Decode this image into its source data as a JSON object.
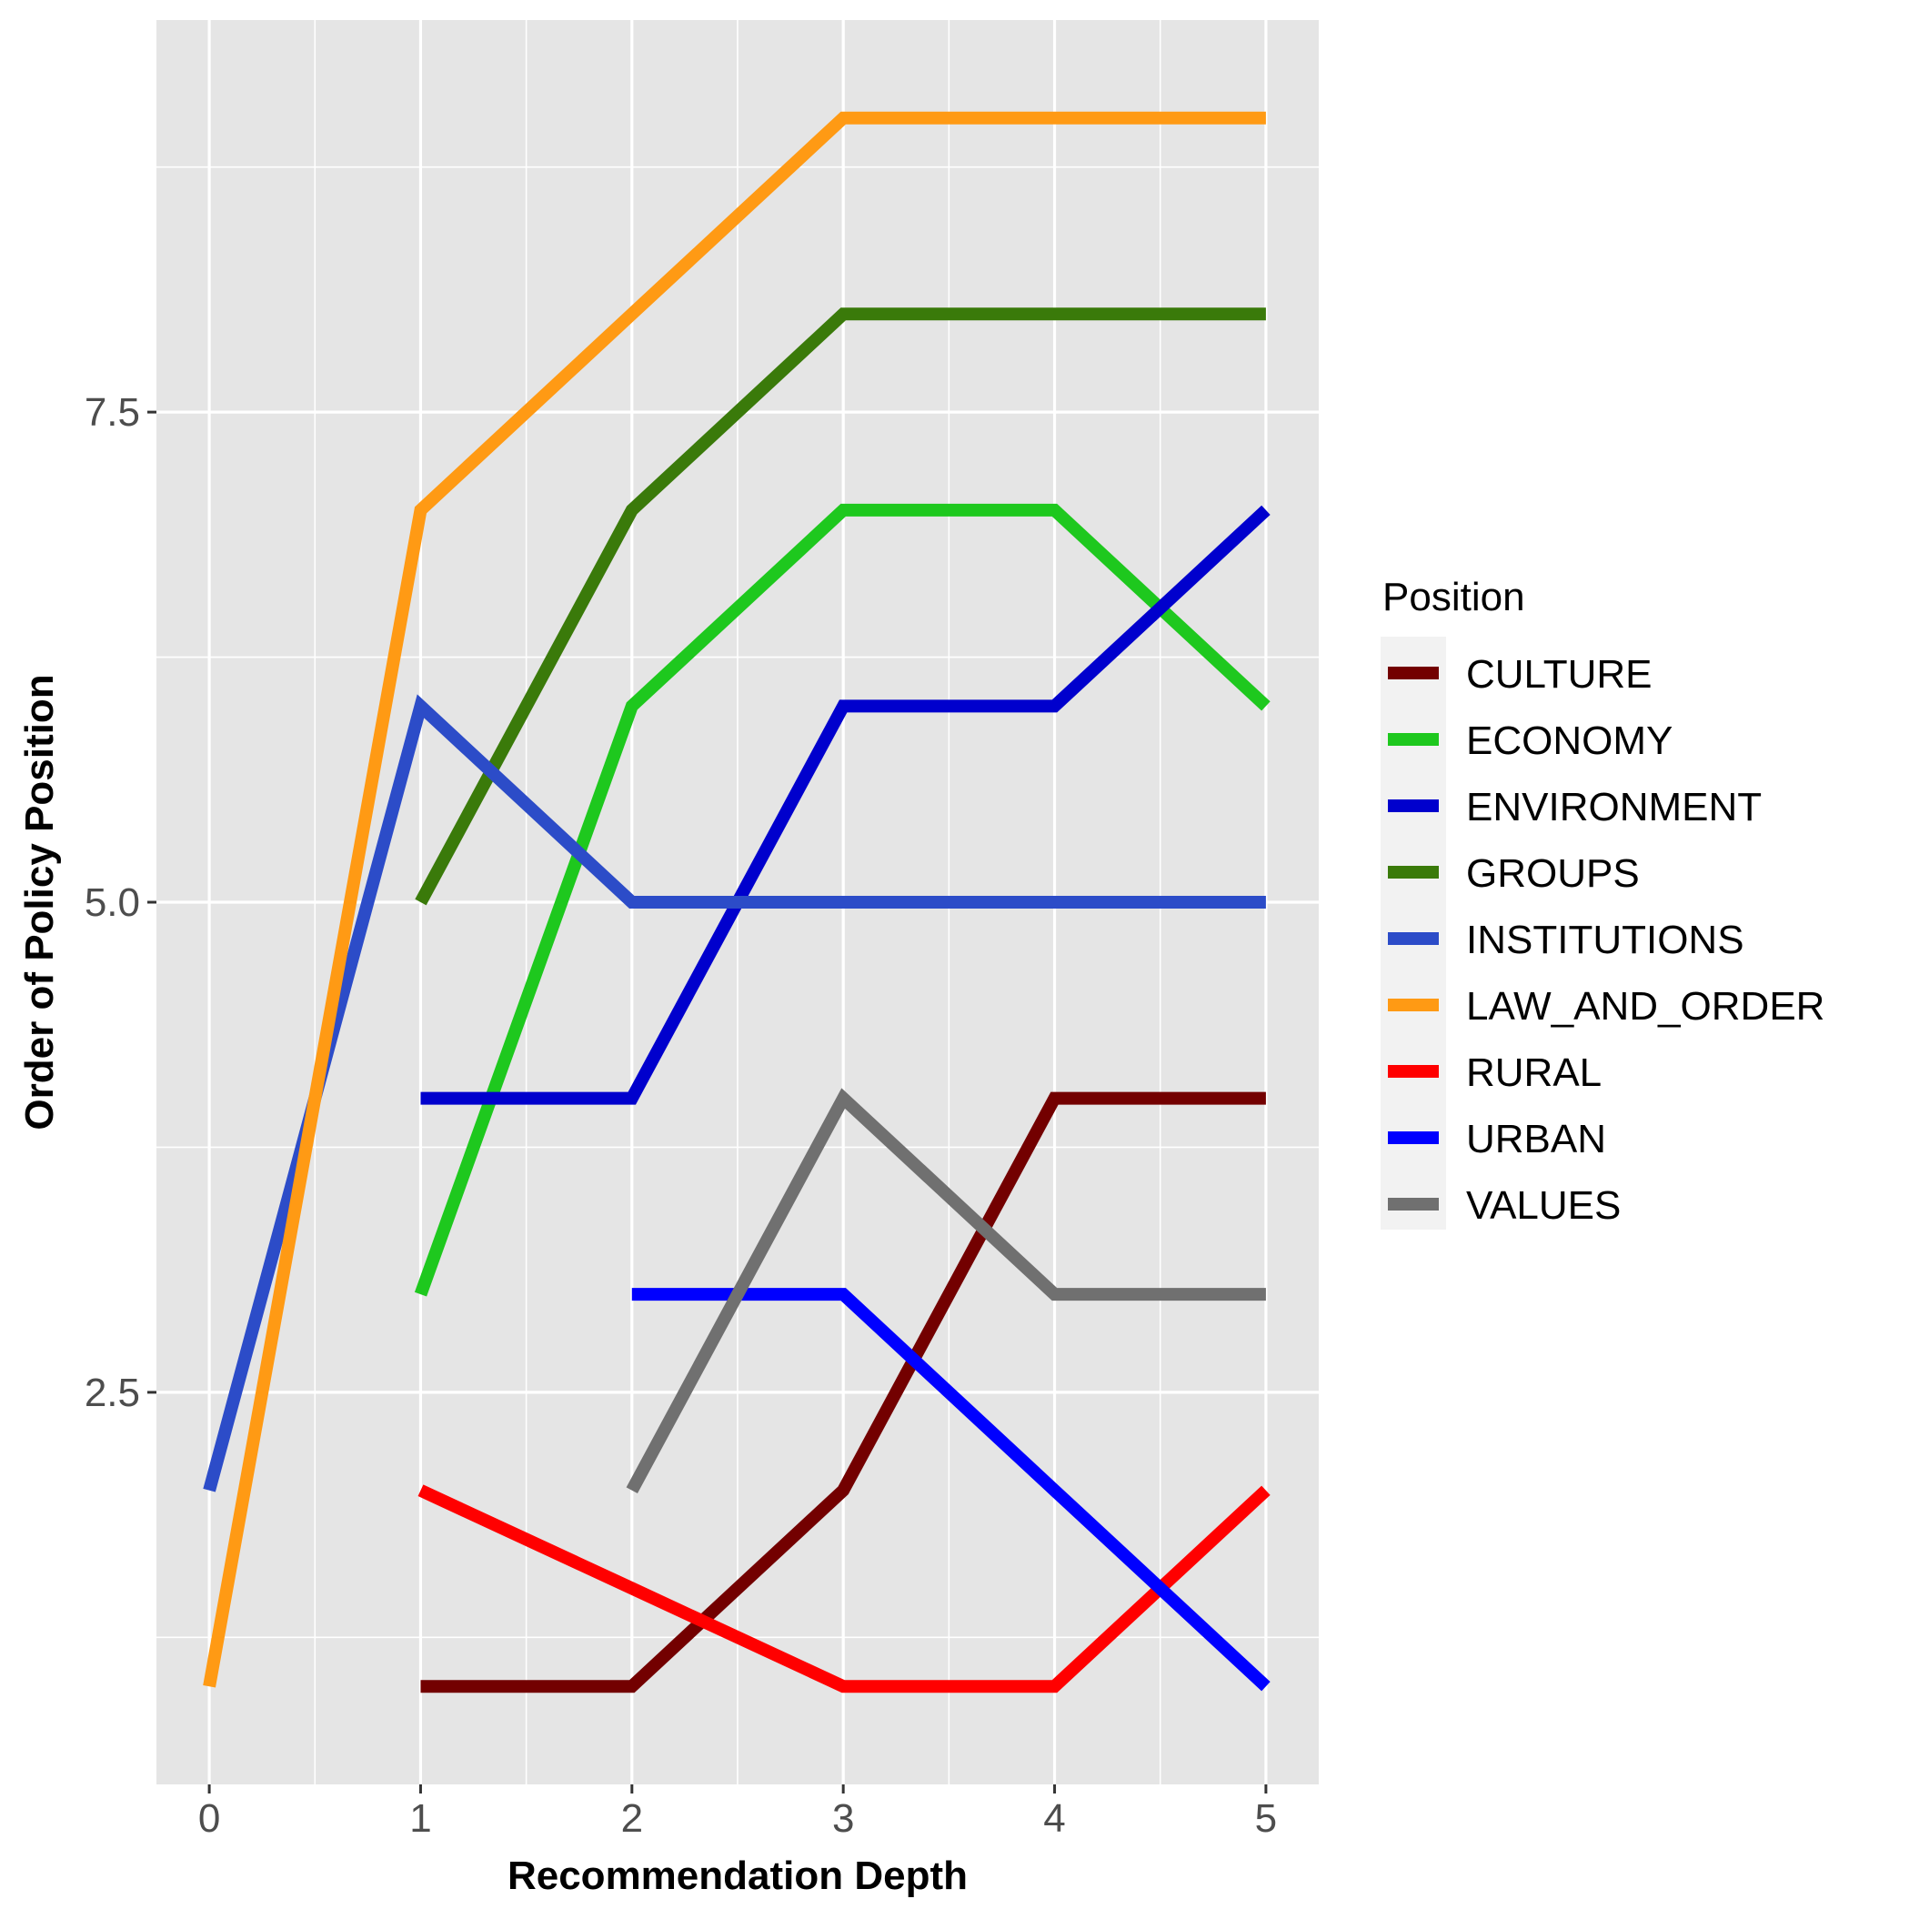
{
  "chart_data": {
    "type": "line",
    "title": "",
    "xlabel": "Recommendation Depth",
    "ylabel": "Order of Policy Position",
    "xlim": [
      -0.25,
      5.25
    ],
    "ylim": [
      0.5,
      9.5
    ],
    "x_ticks": [
      0,
      1,
      2,
      3,
      4,
      5
    ],
    "x_tick_labels": [
      "0",
      "1",
      "2",
      "3",
      "4",
      "5"
    ],
    "y_ticks": [
      2.5,
      5.0,
      7.5
    ],
    "y_tick_labels": [
      "2.5",
      "5.0",
      "7.5"
    ],
    "grid": true,
    "background": "#e5e5e5",
    "legend": {
      "title": "Position",
      "position": "right"
    },
    "series": [
      {
        "name": "CULTURE",
        "color": "#730000",
        "x": [
          1,
          2,
          3,
          4,
          5
        ],
        "y": [
          1,
          1,
          2,
          4,
          4
        ]
      },
      {
        "name": "ECONOMY",
        "color": "#1ec81e",
        "x": [
          1,
          2,
          3,
          4,
          5
        ],
        "y": [
          3,
          6,
          7,
          7,
          6
        ]
      },
      {
        "name": "ENVIRONMENT",
        "color": "#0000cd",
        "x": [
          1,
          2,
          3,
          4,
          5
        ],
        "y": [
          4,
          4,
          6,
          6,
          7
        ]
      },
      {
        "name": "GROUPS",
        "color": "#3a7a0a",
        "x": [
          1,
          2,
          3,
          4,
          5
        ],
        "y": [
          5,
          7,
          8,
          8,
          8
        ]
      },
      {
        "name": "INSTITUTIONS",
        "color": "#2c4cc8",
        "x": [
          0,
          1,
          2,
          3,
          4,
          5
        ],
        "y": [
          2,
          6,
          5,
          5,
          5,
          5
        ]
      },
      {
        "name": "LAW_AND_ORDER",
        "color": "#ff9a14",
        "x": [
          0,
          1,
          2,
          3,
          4,
          5
        ],
        "y": [
          1,
          7,
          8,
          9,
          9,
          9
        ]
      },
      {
        "name": "RURAL",
        "color": "#ff0000",
        "x": [
          1,
          2,
          3,
          4,
          5
        ],
        "y": [
          2,
          1.5,
          1,
          1,
          2
        ]
      },
      {
        "name": "URBAN",
        "color": "#0000ff",
        "x": [
          2,
          3,
          4,
          5
        ],
        "y": [
          3,
          3,
          2,
          1
        ]
      },
      {
        "name": "VALUES",
        "color": "#707070",
        "x": [
          2,
          3,
          4,
          5
        ],
        "y": [
          2,
          4,
          3,
          3
        ]
      }
    ]
  }
}
